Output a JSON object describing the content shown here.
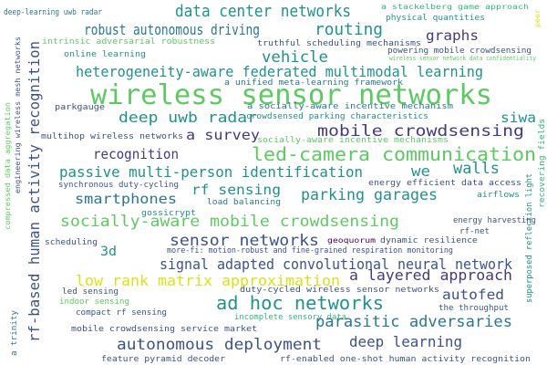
{
  "words": [
    "deep-learning uwb radar",
    "data center networks",
    "a stackelberg game approach",
    "peer",
    "physical quantities",
    "routing",
    "robust autonomous driving",
    "intrinsic adversarial robustness",
    "graphs",
    "truthful scheduling mechanisms",
    "powering mobile crowdsensing",
    "online learning",
    "vehicle",
    "wireless sensor network data confidentiality",
    "heterogeneity-aware federated multimodal learning",
    "a unified meta-learning framework",
    "wireless sensor networks",
    "engineering wireless mesh networks",
    "compressed data aggregation",
    "rf-based human activity recognition",
    "a socially-aware incentive mechanism",
    "parkgauge",
    "crowdsensed parking characteristics",
    "deep uwb radar",
    "siwa",
    "mobile crowdsensing",
    "a survey",
    "multihop wireless networks",
    "socially-aware incentive mechanisms",
    "recovering fields",
    "led-camera communication",
    "recognition",
    "walls",
    "we",
    "passive multi-person identification",
    "energy efficient data access",
    "synchronous duty-cycling",
    "superposed reflection light",
    "rf sensing",
    "parking garages",
    "airflows",
    "smartphones",
    "load balancing",
    "gossicrypt",
    "energy harvesting",
    "socially-aware mobile crowdsensing",
    "rf-net",
    "geoquorum",
    "dynamic resilience",
    "sensor networks",
    "scheduling",
    "3d",
    "more-fi: motion-robust and fine-grained respiration monitoring",
    "signal adapted convolutional neural network",
    "low rank matrix approximation",
    "a layered approach",
    "led sensing",
    "duty-cycled wireless sensor networks",
    "autofed",
    "indoor sensing",
    "ad hoc networks",
    "the throughput",
    "compact rf sensing",
    "incomplete sensory data",
    "parasitic adversaries",
    "mobile crowdsensing service market",
    "a trinity",
    "autonomous deployment",
    "deep learning",
    "feature pyramid decoder",
    "rf-enabled one-shot human activity recognition"
  ]
}
